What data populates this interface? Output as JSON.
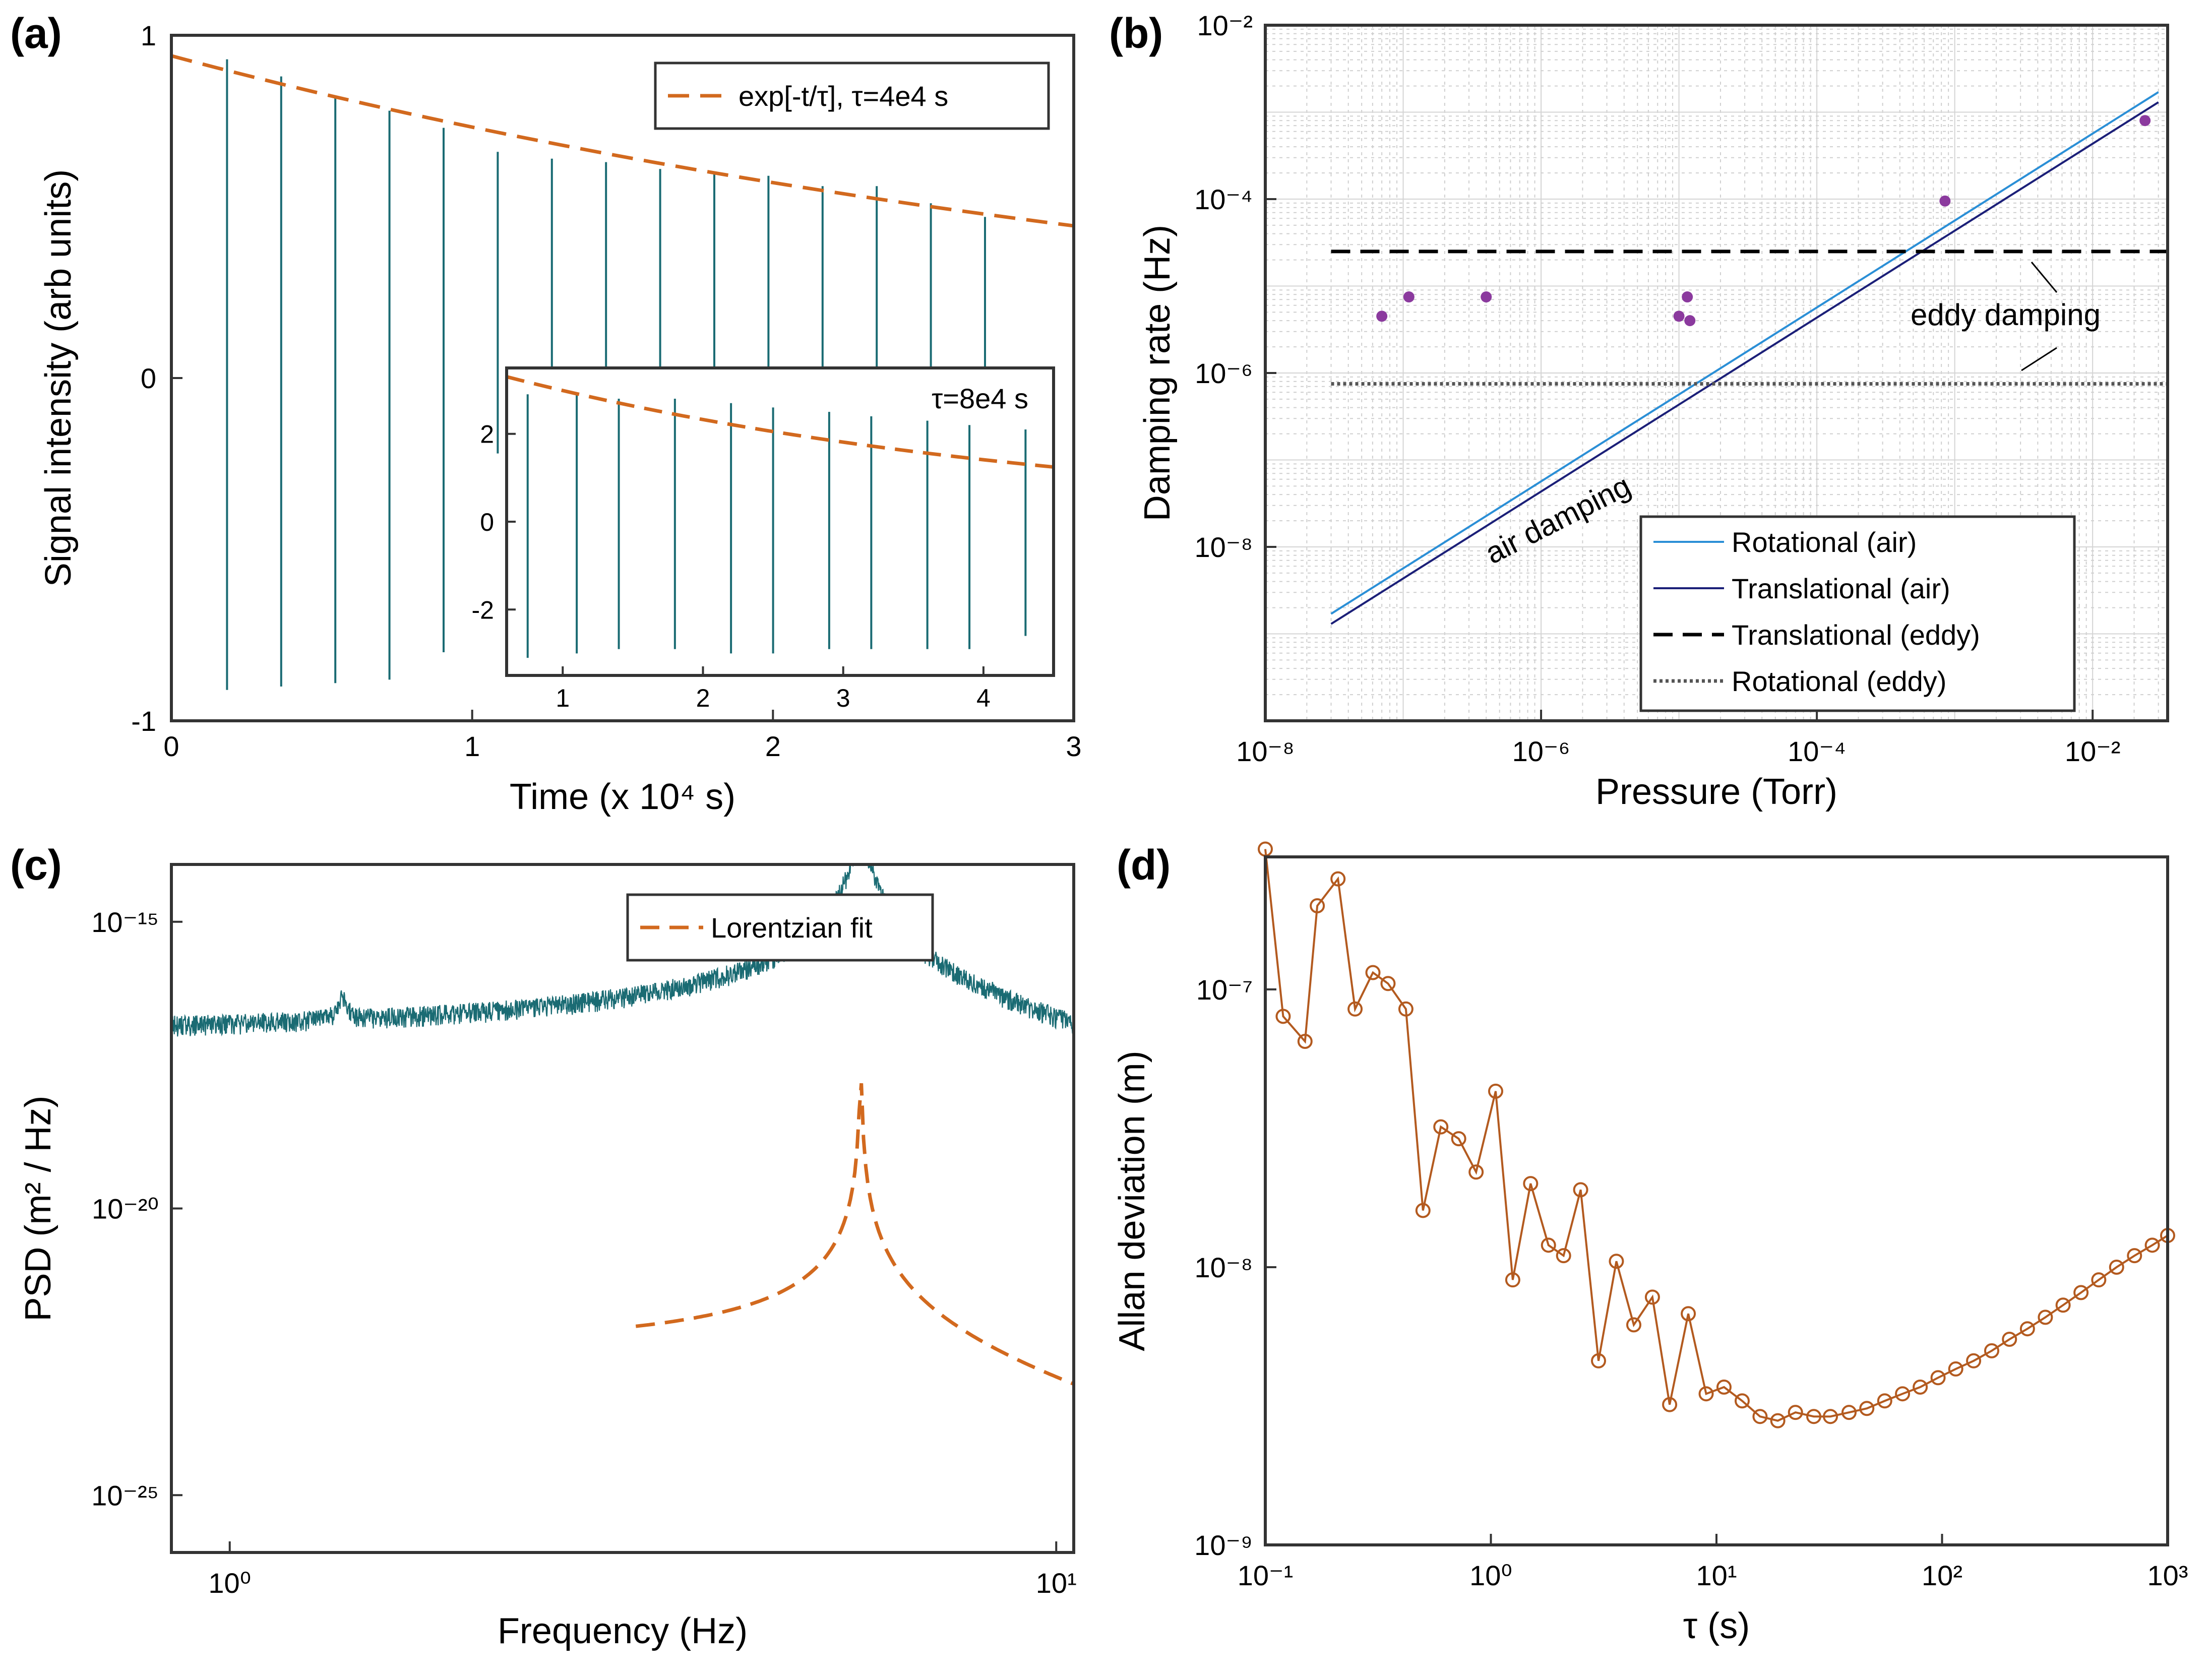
{
  "panels": {
    "a": {
      "label": "(a)"
    },
    "b": {
      "label": "(b)"
    },
    "c": {
      "label": "(c)"
    },
    "d": {
      "label": "(d)"
    }
  },
  "chart_data": [
    {
      "id": "a",
      "type": "line",
      "xlabel": "Time (x 10⁴ s)",
      "ylabel": "Signal intensity (arb units)",
      "xlim": [
        0,
        3
      ],
      "ylim": [
        -1,
        1
      ],
      "xticks": [
        "0",
        "1",
        "2",
        "3"
      ],
      "yticks": [
        "-1",
        "0",
        "1"
      ],
      "series": [
        {
          "name": "exp[-t/τ], τ=4e4 s",
          "kind": "fit",
          "color": "#d2691e",
          "tau": 4,
          "amp": 0.94
        },
        {
          "kind": "signal",
          "color": "#1a6b73",
          "spike_times": [
            0.185,
            0.365,
            0.545,
            0.725,
            0.905,
            1.085,
            1.265,
            1.445,
            1.625,
            1.805,
            1.985,
            2.165,
            2.345,
            2.525,
            2.705
          ],
          "spike_top": [
            0.93,
            0.88,
            0.82,
            0.78,
            0.73,
            0.66,
            0.64,
            0.63,
            0.61,
            0.6,
            0.59,
            0.56,
            0.56,
            0.51,
            0.47
          ],
          "spike_bottom": [
            -0.91,
            -0.9,
            -0.89,
            -0.88,
            -0.8,
            -0.22,
            -0.22,
            -0.22,
            -0.22,
            -0.22,
            -0.22,
            -0.22,
            -0.22,
            -0.22,
            -0.22
          ]
        }
      ],
      "inset": {
        "annotation": "τ=8e4 s",
        "xlim": [
          0.6,
          4.5
        ],
        "ylim": [
          -3.5,
          3.5
        ],
        "xticks": [
          "1",
          "2",
          "3",
          "4"
        ],
        "yticks": [
          "-2",
          "0",
          "2"
        ],
        "fit": {
          "amp": 3.3,
          "tau": 8
        },
        "spike_times": [
          0.75,
          1.1,
          1.4,
          1.8,
          2.2,
          2.5,
          2.9,
          3.2,
          3.6,
          3.9,
          4.3
        ],
        "spike_top": [
          2.9,
          2.9,
          2.8,
          2.8,
          2.7,
          2.6,
          2.5,
          2.4,
          2.3,
          2.2,
          2.1
        ],
        "spike_bottom": [
          -3.1,
          -3.0,
          -2.9,
          -2.9,
          -3.0,
          -3.0,
          -2.9,
          -2.9,
          -2.9,
          -2.9,
          -2.6
        ]
      }
    },
    {
      "id": "b",
      "type": "line",
      "scale": "log-log",
      "xlabel": "Pressure (Torr)",
      "ylabel": "Damping rate (Hz)",
      "xlim": [
        1e-08,
        0.035
      ],
      "ylim": [
        1e-10,
        0.01
      ],
      "xticks": [
        "10⁻⁸",
        "10⁻⁶",
        "10⁻⁴",
        "10⁻²"
      ],
      "yticks": [
        "10⁻⁸",
        "10⁻⁶",
        "10⁻⁴",
        "10⁻²"
      ],
      "grid": true,
      "legend_position": "bottom-right",
      "series": [
        {
          "name": "Rotational (air)",
          "style": "solid",
          "color": "#2b8fd6",
          "x": [
            3e-08,
            0.03
          ],
          "y": [
            1.7e-09,
            0.0017
          ]
        },
        {
          "name": "Translational (air)",
          "style": "solid",
          "color": "#1b1f78",
          "x": [
            3e-08,
            0.03
          ],
          "y": [
            1.3e-09,
            0.0013
          ]
        },
        {
          "name": "Translational (eddy)",
          "style": "dashed",
          "color": "#000000",
          "x": [
            3e-08,
            0.035
          ],
          "y": [
            2.5e-05,
            2.5e-05
          ]
        },
        {
          "name": "Rotational (eddy)",
          "style": "dotted",
          "color": "#555555",
          "x": [
            3e-08,
            0.035
          ],
          "y": [
            7.5e-07,
            7.5e-07
          ]
        },
        {
          "kind": "points",
          "color": "#8b3a9e",
          "x": [
            7e-08,
            1.1e-07,
            4e-07,
            1e-05,
            1.15e-05,
            1.2e-05,
            0.00085,
            0.024
          ],
          "y": [
            4.5e-06,
            7.5e-06,
            7.5e-06,
            4.5e-06,
            7.5e-06,
            4e-06,
            9.5e-05,
            0.0008
          ]
        }
      ],
      "annotations": [
        "eddy damping",
        "air damping"
      ]
    },
    {
      "id": "c",
      "type": "line",
      "scale": "log-log",
      "xlabel": "Frequency (Hz)",
      "ylabel": "PSD (m² / Hz)",
      "xlim": [
        0.85,
        10.5
      ],
      "ylim": [
        1e-26,
        1e-14
      ],
      "xticks": [
        "10⁰",
        "10¹"
      ],
      "yticks": [
        "10⁻¹⁵",
        "10⁻²⁰",
        "10⁻²⁵"
      ],
      "legend_position": "top-right",
      "series": [
        {
          "kind": "psd",
          "color": "#1a6b73",
          "baseline": 3e-22,
          "peaks": [
            {
              "f": 1.37,
              "height": 3e-17,
              "width": 0.012
            },
            {
              "f": 5.8,
              "height": 3e-14,
              "width": 0.02
            },
            {
              "f": 1.12,
              "height": 1e-18,
              "width": 0.003
            },
            {
              "f": 2.35,
              "height": 1e-18,
              "width": 0.004
            },
            {
              "f": 4.35,
              "height": 3e-18,
              "width": 0.003
            },
            {
              "f": 5.25,
              "height": 1e-17,
              "width": 0.003
            },
            {
              "f": 7.2,
              "height": 1e-17,
              "width": 0.004
            },
            {
              "f": 8.3,
              "height": 1e-17,
              "width": 0.01
            }
          ]
        },
        {
          "name": "Lorentzian fit",
          "style": "dashed",
          "color": "#d2691e",
          "f0": 5.8,
          "xrange": [
            3.1,
            10.5
          ]
        }
      ]
    },
    {
      "id": "d",
      "type": "line",
      "scale": "log-log",
      "xlabel": "τ (s)",
      "ylabel": "Allan deviation (m)",
      "xlim": [
        0.1,
        1000
      ],
      "ylim": [
        1e-09,
        3e-07
      ],
      "xticks": [
        "10⁻¹",
        "10⁰",
        "10¹",
        "10²",
        "10³"
      ],
      "yticks": [
        "10⁻⁹",
        "10⁻⁸",
        "10⁻⁷"
      ],
      "series": [
        {
          "color": "#b35a1f",
          "marker": "circle",
          "x": [
            0.1,
            0.12,
            0.15,
            0.17,
            0.21,
            0.25,
            0.3,
            0.35,
            0.42,
            0.5,
            0.6,
            0.72,
            0.86,
            1.05,
            1.25,
            1.5,
            1.8,
            2.1,
            2.5,
            3.0,
            3.6,
            4.3,
            5.2,
            6.2,
            7.5,
            9.0,
            10.8,
            13,
            15.6,
            18.7,
            22.4,
            27,
            32,
            38.7,
            46.4,
            55.7,
            66.8,
            80,
            96,
            115,
            138,
            166,
            199,
            239,
            287,
            344,
            413,
            495,
            594,
            713,
            855,
            1000
          ],
          "y": [
            3.2e-07,
            8e-08,
            6.5e-08,
            2e-07,
            2.5e-07,
            8.5e-08,
            1.15e-07,
            1.05e-07,
            8.5e-08,
            1.6e-08,
            3.2e-08,
            2.9e-08,
            2.2e-08,
            4.3e-08,
            9e-09,
            2e-08,
            1.2e-08,
            1.1e-08,
            1.9e-08,
            4.6e-09,
            1.05e-08,
            6.2e-09,
            7.8e-09,
            3.2e-09,
            6.8e-09,
            3.5e-09,
            3.7e-09,
            3.3e-09,
            2.9e-09,
            2.8e-09,
            3e-09,
            2.9e-09,
            2.9e-09,
            3e-09,
            3.1e-09,
            3.3e-09,
            3.5e-09,
            3.7e-09,
            4e-09,
            4.3e-09,
            4.6e-09,
            5e-09,
            5.5e-09,
            6e-09,
            6.6e-09,
            7.3e-09,
            8.1e-09,
            9e-09,
            1e-08,
            1.1e-08,
            1.2e-08,
            1.3e-08
          ]
        }
      ]
    }
  ]
}
